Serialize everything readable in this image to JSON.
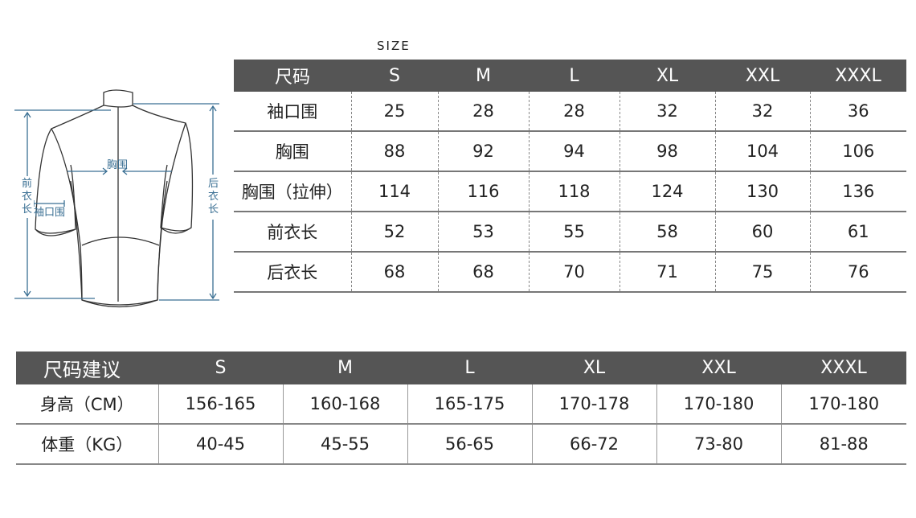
{
  "size_caption": "SIZE",
  "diagram_labels": {
    "chest": "胸围",
    "cuff": "袖口围",
    "front_length": [
      "前",
      "衣",
      "长"
    ],
    "back_length": [
      "后",
      "衣",
      "长"
    ]
  },
  "size_table": {
    "header": [
      "尺码",
      "S",
      "M",
      "L",
      "XL",
      "XXL",
      "XXXL"
    ],
    "rows": [
      {
        "label": "袖口围",
        "values": [
          "25",
          "28",
          "28",
          "32",
          "32",
          "36"
        ]
      },
      {
        "label": "胸围",
        "values": [
          "88",
          "92",
          "94",
          "98",
          "104",
          "106"
        ]
      },
      {
        "label": "胸围（拉伸）",
        "values": [
          "114",
          "116",
          "118",
          "124",
          "130",
          "136"
        ]
      },
      {
        "label": "前衣长",
        "values": [
          "52",
          "53",
          "55",
          "58",
          "60",
          "61"
        ]
      },
      {
        "label": "后衣长",
        "values": [
          "68",
          "68",
          "70",
          "71",
          "75",
          "76"
        ]
      }
    ]
  },
  "recommend_table": {
    "header": [
      "尺码建议",
      "S",
      "M",
      "L",
      "XL",
      "XXL",
      "XXXL"
    ],
    "rows": [
      {
        "label": "身高（CM）",
        "values": [
          "156-165",
          "160-168",
          "165-175",
          "170-178",
          "170-180",
          "170-180"
        ]
      },
      {
        "label": "体重（KG）",
        "values": [
          "40-45",
          "45-55",
          "56-65",
          "66-72",
          "73-80",
          "81-88"
        ]
      }
    ]
  },
  "colors": {
    "header_bg": "#555555",
    "measure_blue": "#3a6f93"
  }
}
